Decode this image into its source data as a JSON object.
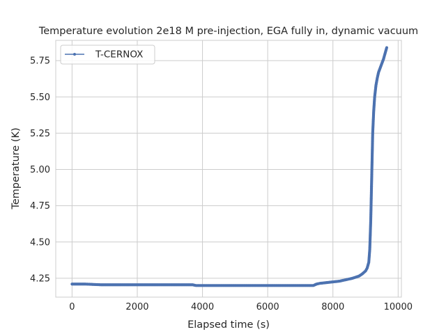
{
  "chart_data": {
    "type": "line",
    "title": "Temperature evolution 2e18 M pre-injection, EGA fully in, dynamic vacuum",
    "xlabel": "Elapsed time (s)",
    "ylabel": "Temperature (K)",
    "xlim": [
      -500,
      10100
    ],
    "ylim": [
      4.12,
      5.89
    ],
    "xticks": [
      0,
      2000,
      4000,
      6000,
      8000,
      10000
    ],
    "yticks": [
      4.25,
      4.5,
      4.75,
      5.0,
      5.25,
      5.5,
      5.75
    ],
    "xtick_labels": [
      "0",
      "2000",
      "4000",
      "6000",
      "8000",
      "10000"
    ],
    "ytick_labels": [
      "4.25",
      "4.50",
      "4.75",
      "5.00",
      "5.25",
      "5.50",
      "5.75"
    ],
    "grid": true,
    "legend_position": "top-left",
    "series": [
      {
        "name": "T-CERNOX",
        "color": "#4c72b0",
        "marker": "circle",
        "x": [
          0,
          400,
          900,
          1500,
          2500,
          3700,
          3800,
          5000,
          6500,
          7400,
          7500,
          7600,
          7800,
          8000,
          8200,
          8400,
          8600,
          8800,
          8900,
          9000,
          9050,
          9100,
          9130,
          9160,
          9180,
          9200,
          9220,
          9250,
          9280,
          9320,
          9360,
          9400,
          9450,
          9500,
          9550,
          9600,
          9650
        ],
        "y": [
          4.21,
          4.21,
          4.205,
          4.205,
          4.205,
          4.205,
          4.2,
          4.2,
          4.2,
          4.2,
          4.21,
          4.215,
          4.22,
          4.225,
          4.23,
          4.24,
          4.25,
          4.265,
          4.28,
          4.3,
          4.32,
          4.36,
          4.45,
          4.65,
          4.85,
          5.05,
          5.25,
          5.4,
          5.5,
          5.58,
          5.63,
          5.67,
          5.7,
          5.73,
          5.76,
          5.8,
          5.84
        ]
      }
    ]
  }
}
